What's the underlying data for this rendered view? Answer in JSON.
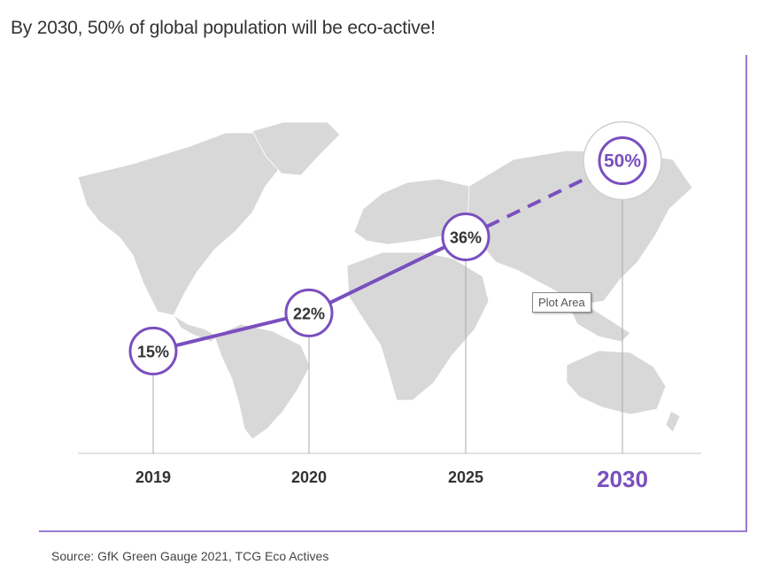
{
  "title": "By 2030, 50% of global population will be eco-active!",
  "source": "Source: GfK Green Gauge 2021, TCG Eco Actives",
  "tooltip": "Plot Area",
  "colors": {
    "accent": "#7a4fbe",
    "map": "#d8d8d8",
    "text": "#333333",
    "stem": "#a8a8a8"
  },
  "chart_data": {
    "type": "line",
    "title": "By 2030, 50% of global population will be eco-active!",
    "categories": [
      "2019",
      "2020",
      "2025",
      "2030"
    ],
    "values": [
      15,
      22,
      36,
      50
    ],
    "labels": [
      "15%",
      "22%",
      "36%",
      "50%"
    ],
    "projected_from_index": 2,
    "highlight_index": 3,
    "unit": "%",
    "background": "world-map",
    "legend": "none",
    "grid": false
  }
}
